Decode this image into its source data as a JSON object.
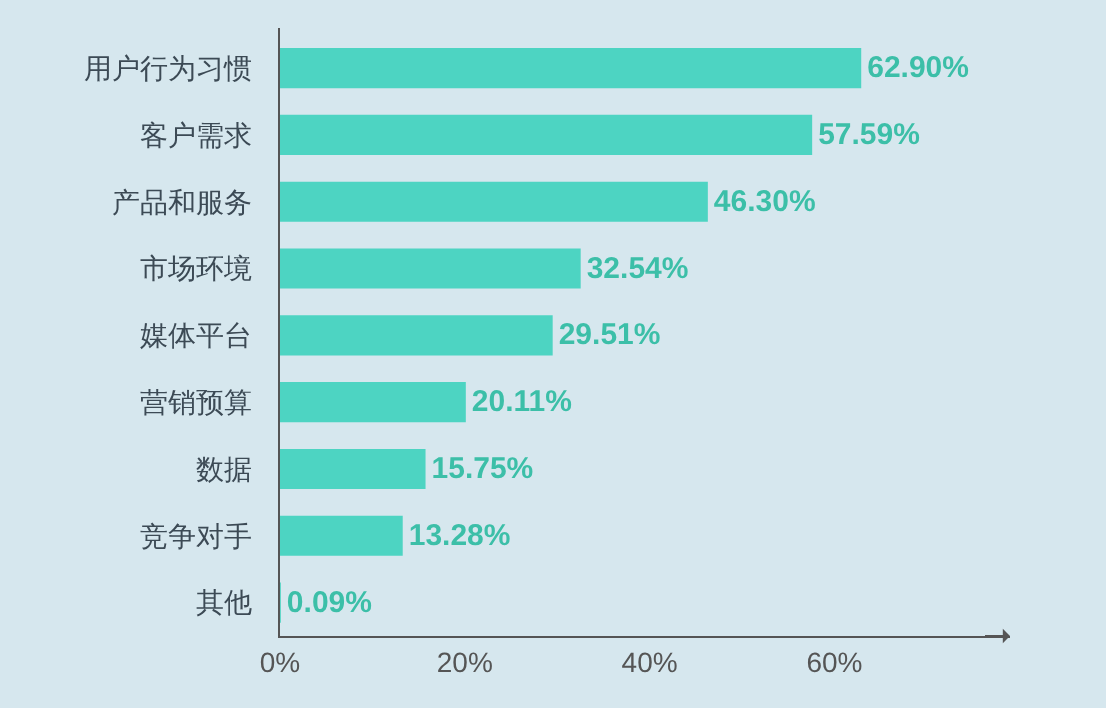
{
  "chart_data": {
    "type": "bar",
    "orientation": "horizontal",
    "categories": [
      "用户行为习惯",
      "客户需求",
      "产品和服务",
      "市场环境",
      "媒体平台",
      "营销预算",
      "数据",
      "竞争对手",
      "其他"
    ],
    "values": [
      62.9,
      57.59,
      46.3,
      32.54,
      29.51,
      20.11,
      15.75,
      13.28,
      0.09
    ],
    "value_labels": [
      "62.90%",
      "57.59%",
      "46.30%",
      "32.54%",
      "29.51%",
      "20.11%",
      "15.75%",
      "13.28%",
      "0.09%"
    ],
    "color": "#4dd4c2",
    "xlim": [
      0,
      79
    ],
    "xticks": [
      {
        "value": 0,
        "label": "0%"
      },
      {
        "value": 20,
        "label": "20%"
      },
      {
        "value": 40,
        "label": "40%"
      },
      {
        "value": 60,
        "label": "60%"
      }
    ],
    "grid": false,
    "legend": false
  }
}
